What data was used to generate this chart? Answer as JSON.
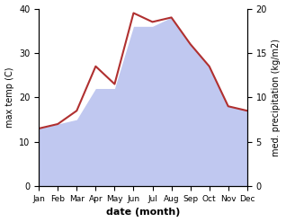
{
  "months": [
    "Jan",
    "Feb",
    "Mar",
    "Apr",
    "May",
    "Jun",
    "Jul",
    "Aug",
    "Sep",
    "Oct",
    "Nov",
    "Dec"
  ],
  "temperature": [
    13,
    14,
    17,
    27,
    23,
    39,
    37,
    38,
    32,
    27,
    18,
    17
  ],
  "precipitation_display": [
    13,
    14,
    15,
    22,
    22,
    36,
    36,
    38,
    32,
    27,
    18,
    17
  ],
  "temp_color": "#b03030",
  "precip_fill_color": "#c0c8f0",
  "left_ylabel": "max temp (C)",
  "right_ylabel": "med. precipitation (kg/m2)",
  "xlabel": "date (month)",
  "ylim_left": [
    0,
    40
  ],
  "ylim_right": [
    0,
    20
  ],
  "left_yticks": [
    0,
    10,
    20,
    30,
    40
  ],
  "right_yticks": [
    0,
    5,
    10,
    15,
    20
  ],
  "background_color": "#ffffff"
}
